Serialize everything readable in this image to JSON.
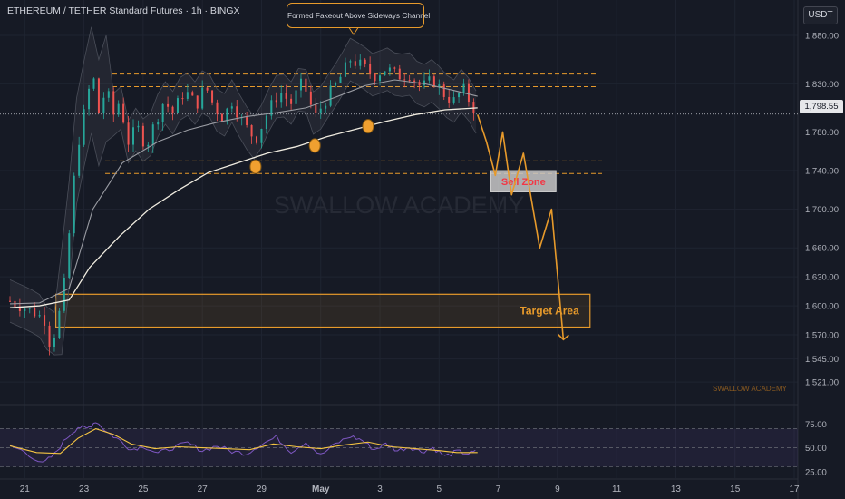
{
  "header": {
    "title": "ETHEREUM / TETHER Standard Futures · 1h · BINGX"
  },
  "currency_button": "USDT",
  "callout_text": "Formed Fakeout Above Sideways Channel",
  "current_price_label": "1,798.55",
  "watermark": "SWALLOW ACADEMY",
  "watermark_small": "SWALLOW ACADEMY",
  "colors": {
    "background": "#161a25",
    "grid": "#1f2431",
    "orange": "#e79a2b",
    "candle_up": "#26a69a",
    "candle_down": "#ef5350",
    "sell_zone_text": "#f23645",
    "rsi_line": "#7e57c2",
    "rsi_ma": "#f5c542",
    "ma_white": "#f0ece0",
    "ma_grey": "#9a9ca3"
  },
  "chart_data": [
    {
      "type": "candlestick",
      "title": "ETHEREUM / TETHER Standard Futures · 1h · BINGX",
      "y_axis_ticks": [
        "1,880.00",
        "1,830.00",
        "1,780.00",
        "1,740.00",
        "1,700.00",
        "1,660.00",
        "1,630.00",
        "1,600.00",
        "1,570.00",
        "1,545.00",
        "1,521.00"
      ],
      "y_tick_values": [
        1880,
        1830,
        1780,
        1740,
        1700,
        1660,
        1630,
        1600,
        1570,
        1545,
        1521
      ],
      "x_axis_ticks": [
        "21",
        "23",
        "25",
        "27",
        "29",
        "May",
        "3",
        "5",
        "7",
        "9",
        "11",
        "13",
        "15",
        "17"
      ],
      "x_tick_days": [
        21,
        23,
        25,
        27,
        29,
        31,
        33,
        35,
        37,
        39,
        41,
        43,
        45,
        47
      ],
      "ylim": [
        1508,
        1896
      ],
      "last_price": 1798.55,
      "price_path": [
        [
          20.5,
          1605
        ],
        [
          21.0,
          1598
        ],
        [
          21.4,
          1592
        ],
        [
          21.7,
          1585
        ],
        [
          21.85,
          1560
        ],
        [
          22.05,
          1575
        ],
        [
          22.3,
          1612
        ],
        [
          22.55,
          1690
        ],
        [
          22.75,
          1760
        ],
        [
          22.95,
          1790
        ],
        [
          23.1,
          1815
        ],
        [
          23.3,
          1840
        ],
        [
          23.5,
          1800
        ],
        [
          23.75,
          1825
        ],
        [
          24.0,
          1798
        ],
        [
          24.2,
          1812
        ],
        [
          24.5,
          1770
        ],
        [
          24.8,
          1785
        ],
        [
          25.1,
          1765
        ],
        [
          25.4,
          1790
        ],
        [
          25.7,
          1812
        ],
        [
          26.0,
          1800
        ],
        [
          26.4,
          1823
        ],
        [
          26.8,
          1808
        ],
        [
          27.1,
          1828
        ],
        [
          27.4,
          1806
        ],
        [
          27.7,
          1795
        ],
        [
          28.0,
          1812
        ],
        [
          28.4,
          1788
        ],
        [
          28.8,
          1772
        ],
        [
          29.2,
          1800
        ],
        [
          29.6,
          1822
        ],
        [
          30.0,
          1810
        ],
        [
          30.4,
          1832
        ],
        [
          30.8,
          1795
        ],
        [
          31.2,
          1815
        ],
        [
          31.6,
          1833
        ],
        [
          32.0,
          1855
        ],
        [
          32.4,
          1848
        ],
        [
          32.8,
          1838
        ],
        [
          33.2,
          1846
        ],
        [
          33.6,
          1838
        ],
        [
          34.0,
          1840
        ],
        [
          34.4,
          1826
        ],
        [
          34.8,
          1834
        ],
        [
          35.2,
          1818
        ],
        [
          35.5,
          1812
        ],
        [
          35.8,
          1825
        ],
        [
          36.1,
          1808
        ],
        [
          36.3,
          1798
        ]
      ],
      "projection": [
        [
          36.3,
          1798
        ],
        [
          36.6,
          1770
        ],
        [
          36.9,
          1735
        ],
        [
          37.15,
          1780
        ],
        [
          37.45,
          1715
        ],
        [
          37.85,
          1758
        ],
        [
          38.4,
          1660
        ],
        [
          38.8,
          1700
        ],
        [
          39.2,
          1565
        ]
      ],
      "sideways_channel_lines": [
        1840,
        1827,
        1750,
        1737
      ],
      "sell_zone": {
        "label": "Sell Zone",
        "from_day": 36.75,
        "to_day": 38.95,
        "top": 1740,
        "bottom": 1718
      },
      "target_area": {
        "label": "Target Area",
        "from_day": 22.05,
        "to_day": 40.1,
        "top": 1612,
        "bottom": 1578
      },
      "ma_white": [
        [
          20.5,
          1598
        ],
        [
          21.5,
          1600
        ],
        [
          22.5,
          1606
        ],
        [
          23.2,
          1640
        ],
        [
          24.2,
          1672
        ],
        [
          25.2,
          1700
        ],
        [
          26.2,
          1720
        ],
        [
          27.2,
          1738
        ],
        [
          28.2,
          1748
        ],
        [
          29.2,
          1758
        ],
        [
          30.2,
          1765
        ],
        [
          31.2,
          1775
        ],
        [
          32.2,
          1783
        ],
        [
          33.2,
          1791
        ],
        [
          34.2,
          1798
        ],
        [
          35.2,
          1803
        ],
        [
          36.3,
          1805
        ]
      ],
      "ma_grey": [
        [
          20.5,
          1602
        ],
        [
          21.5,
          1603
        ],
        [
          22.5,
          1618
        ],
        [
          23.3,
          1700
        ],
        [
          24.3,
          1748
        ],
        [
          25.5,
          1770
        ],
        [
          26.5,
          1782
        ],
        [
          27.5,
          1790
        ],
        [
          28.5,
          1796
        ],
        [
          29.5,
          1800
        ],
        [
          30.5,
          1805
        ],
        [
          31.5,
          1816
        ],
        [
          32.5,
          1828
        ],
        [
          33.5,
          1834
        ],
        [
          34.5,
          1830
        ],
        [
          35.5,
          1823
        ],
        [
          36.3,
          1817
        ]
      ],
      "touch_points": [
        [
          28.8,
          1744
        ],
        [
          30.8,
          1766
        ],
        [
          32.6,
          1786
        ]
      ]
    },
    {
      "type": "line",
      "title": "RSI",
      "y_axis_ticks": [
        "75.00",
        "50.00",
        "25.00"
      ],
      "y_tick_values": [
        75,
        50,
        25
      ],
      "ylim": [
        20,
        82
      ],
      "levels": [
        70,
        50,
        30
      ],
      "rsi": [
        [
          20.5,
          52
        ],
        [
          21.0,
          46
        ],
        [
          21.6,
          33
        ],
        [
          22.0,
          43
        ],
        [
          22.4,
          60
        ],
        [
          22.8,
          72
        ],
        [
          23.1,
          70
        ],
        [
          23.4,
          78
        ],
        [
          23.8,
          66
        ],
        [
          24.2,
          58
        ],
        [
          24.6,
          48
        ],
        [
          25.0,
          52
        ],
        [
          25.5,
          44
        ],
        [
          26.0,
          50
        ],
        [
          26.5,
          55
        ],
        [
          27.0,
          47
        ],
        [
          27.5,
          52
        ],
        [
          28.0,
          46
        ],
        [
          28.5,
          44
        ],
        [
          29.0,
          54
        ],
        [
          29.5,
          61
        ],
        [
          30.0,
          46
        ],
        [
          30.5,
          56
        ],
        [
          31.0,
          42
        ],
        [
          31.5,
          54
        ],
        [
          32.0,
          62
        ],
        [
          32.4,
          58
        ],
        [
          32.8,
          48
        ],
        [
          33.2,
          54
        ],
        [
          33.6,
          47
        ],
        [
          34.0,
          51
        ],
        [
          34.4,
          46
        ],
        [
          34.8,
          50
        ],
        [
          35.2,
          41
        ],
        [
          35.6,
          46
        ],
        [
          36.0,
          44
        ],
        [
          36.3,
          46
        ]
      ],
      "rsi_ma": [
        [
          20.5,
          52
        ],
        [
          21.4,
          45
        ],
        [
          22.2,
          44
        ],
        [
          22.8,
          60
        ],
        [
          23.4,
          70
        ],
        [
          24.0,
          64
        ],
        [
          24.6,
          54
        ],
        [
          25.4,
          49
        ],
        [
          26.2,
          51
        ],
        [
          27.0,
          50
        ],
        [
          27.8,
          49
        ],
        [
          28.6,
          48
        ],
        [
          29.4,
          54
        ],
        [
          30.2,
          51
        ],
        [
          31.0,
          49
        ],
        [
          31.8,
          53
        ],
        [
          32.6,
          56
        ],
        [
          33.4,
          51
        ],
        [
          34.2,
          49
        ],
        [
          35.0,
          47
        ],
        [
          35.6,
          45
        ],
        [
          36.3,
          45
        ]
      ]
    }
  ]
}
